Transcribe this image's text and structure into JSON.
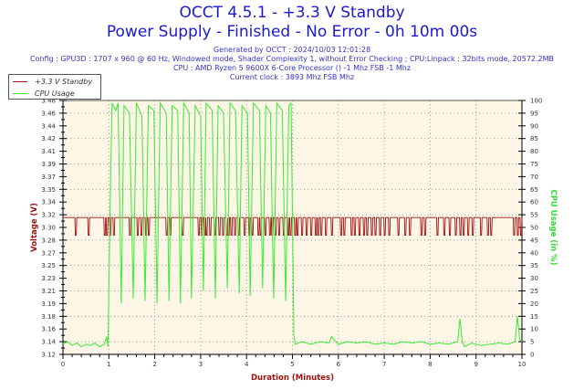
{
  "title": "OCCT 4.5.1 - +3.3 V Standby",
  "subtitle": "Power Supply - Finished - No Error - 0h 10m 00s",
  "info_lines": [
    "Generated by OCCT : 2024/10/03 12:01:28",
    "Config : GPU3D : 1707 x 960 @ 60 Hz, Windowed mode, Shader Complexity 1, without Error Checking ; CPU:Linpack : 32bits mode, 20572.2MB",
    "CPU : AMD Ryzen 5 9600X 6-Core Processor () -1 Mhz FSB -1 Mhz",
    "Current clock : 3893 Mhz FSB  Mhz"
  ],
  "chart_data": {
    "type": "line",
    "xlabel": "Duration (Minutes)",
    "ylabel_left": "Voltage (V)",
    "ylabel_right": "CPU Usage (in %)",
    "xlim": [
      0,
      10
    ],
    "ylim_left": [
      3.12,
      3.48
    ],
    "ylim_right": [
      0,
      100
    ],
    "x_ticks": [
      "0",
      "1",
      "2",
      "3",
      "4",
      "5",
      "6",
      "7",
      "8",
      "9",
      "10"
    ],
    "y_ticks_left": [
      "3.12",
      "3.14",
      "3.16",
      "3.18",
      "3.19",
      "3.21",
      "3.23",
      "3.25",
      "3.27",
      "3.28",
      "3.30",
      "3.32",
      "3.34",
      "3.35",
      "3.37",
      "3.39",
      "3.41",
      "3.42",
      "3.44",
      "3.46",
      "3.48"
    ],
    "y_ticks_right": [
      "0",
      "5",
      "10",
      "15",
      "20",
      "25",
      "30",
      "35",
      "40",
      "45",
      "50",
      "55",
      "60",
      "65",
      "70",
      "75",
      "80",
      "85",
      "90",
      "95",
      "100"
    ],
    "grid": true,
    "legend_position": "top-left",
    "colors": {
      "voltage": "#a01010",
      "cpu": "#33ee33",
      "plot_bg": "#fdf5e6",
      "title": "#1a1acc",
      "axis_label": "#a01010",
      "right_label": "#33dd33"
    },
    "series": [
      {
        "name": "+3.3 V Standby",
        "baseline": 3.314,
        "dip_value": 3.289,
        "dip_times": [
          0.27,
          0.55,
          0.9,
          0.95,
          1.02,
          1.1,
          1.45,
          1.62,
          1.7,
          1.8,
          1.86,
          2.25,
          2.33,
          2.6,
          2.95,
          3.02,
          3.08,
          3.12,
          3.2,
          3.3,
          3.4,
          3.48,
          3.56,
          3.6,
          3.66,
          3.74,
          3.82,
          3.95,
          4.05,
          4.12,
          4.25,
          4.3,
          4.4,
          4.5,
          4.55,
          4.62,
          4.7,
          4.8,
          4.9,
          4.95,
          5.05,
          5.1,
          5.2,
          5.3,
          5.4,
          5.5,
          5.55,
          5.62,
          5.72,
          5.85,
          6.05,
          6.12,
          6.28,
          6.35,
          6.45,
          6.55,
          6.62,
          6.72,
          6.8,
          6.9,
          7.0,
          7.1,
          7.3,
          7.45,
          7.55,
          7.8,
          7.88,
          8.15,
          8.3,
          8.42,
          8.55,
          8.65,
          8.72,
          8.82,
          8.92,
          9.1,
          9.25,
          9.32,
          9.82,
          9.9,
          9.97
        ]
      },
      {
        "name": "CPU Usage",
        "points": [
          [
            0,
            4
          ],
          [
            0.1,
            5
          ],
          [
            0.2,
            3.5
          ],
          [
            0.3,
            4.5
          ],
          [
            0.4,
            3
          ],
          [
            0.5,
            4
          ],
          [
            0.6,
            3.5
          ],
          [
            0.7,
            4.5
          ],
          [
            0.8,
            3
          ],
          [
            0.9,
            4
          ],
          [
            0.95,
            7
          ],
          [
            0.98,
            3
          ],
          [
            1.03,
            60
          ],
          [
            1.07,
            99
          ],
          [
            1.15,
            96
          ],
          [
            1.2,
            99
          ],
          [
            1.27,
            20
          ],
          [
            1.33,
            98
          ],
          [
            1.45,
            95
          ],
          [
            1.53,
            22
          ],
          [
            1.6,
            99
          ],
          [
            1.72,
            94
          ],
          [
            1.79,
            21
          ],
          [
            1.86,
            98
          ],
          [
            1.98,
            96
          ],
          [
            2.05,
            20
          ],
          [
            2.12,
            99
          ],
          [
            2.25,
            95
          ],
          [
            2.31,
            21
          ],
          [
            2.38,
            98
          ],
          [
            2.5,
            96
          ],
          [
            2.56,
            20
          ],
          [
            2.63,
            99
          ],
          [
            2.75,
            95
          ],
          [
            2.8,
            22
          ],
          [
            2.88,
            98
          ],
          [
            3.0,
            94
          ],
          [
            3.06,
            25
          ],
          [
            3.12,
            99
          ],
          [
            3.25,
            96
          ],
          [
            3.32,
            22
          ],
          [
            3.38,
            98
          ],
          [
            3.5,
            95
          ],
          [
            3.58,
            26
          ],
          [
            3.64,
            99
          ],
          [
            3.76,
            96
          ],
          [
            3.84,
            24
          ],
          [
            3.9,
            98
          ],
          [
            4.02,
            95
          ],
          [
            4.08,
            23
          ],
          [
            4.15,
            99
          ],
          [
            4.28,
            96
          ],
          [
            4.35,
            26
          ],
          [
            4.42,
            98
          ],
          [
            4.52,
            95
          ],
          [
            4.59,
            22
          ],
          [
            4.66,
            99
          ],
          [
            4.78,
            96
          ],
          [
            4.85,
            21
          ],
          [
            4.92,
            98
          ],
          [
            4.97,
            99
          ],
          [
            5.03,
            8
          ],
          [
            5.06,
            4
          ],
          [
            5.2,
            5
          ],
          [
            5.4,
            4
          ],
          [
            5.6,
            5
          ],
          [
            5.8,
            4.5
          ],
          [
            5.85,
            7
          ],
          [
            6.0,
            4
          ],
          [
            6.2,
            5
          ],
          [
            6.4,
            4.5
          ],
          [
            6.6,
            5
          ],
          [
            6.8,
            4
          ],
          [
            7.0,
            4.5
          ],
          [
            7.2,
            4
          ],
          [
            7.4,
            5
          ],
          [
            7.6,
            4.5
          ],
          [
            7.8,
            5
          ],
          [
            8.0,
            4
          ],
          [
            8.2,
            4.5
          ],
          [
            8.4,
            4
          ],
          [
            8.6,
            5
          ],
          [
            8.65,
            14
          ],
          [
            8.7,
            5
          ],
          [
            8.75,
            3
          ],
          [
            8.9,
            4.5
          ],
          [
            9.1,
            3.5
          ],
          [
            9.3,
            4
          ],
          [
            9.5,
            4.5
          ],
          [
            9.7,
            4
          ],
          [
            9.85,
            5
          ],
          [
            9.9,
            15
          ],
          [
            9.95,
            6
          ],
          [
            10,
            5
          ]
        ]
      }
    ]
  }
}
